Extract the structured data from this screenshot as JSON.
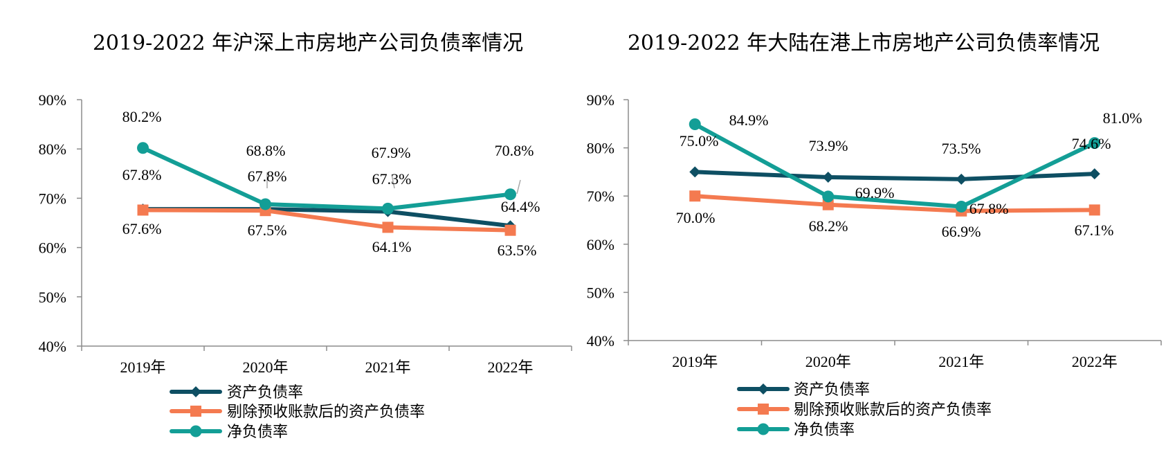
{
  "chart_data": [
    {
      "type": "line",
      "title": "2019-2022 年沪深上市房地产公司负债率情况",
      "categories": [
        "2019年",
        "2020年",
        "2021年",
        "2022年"
      ],
      "ylim": [
        40,
        90
      ],
      "yticks": [
        "40%",
        "50%",
        "60%",
        "70%",
        "80%",
        "90%"
      ],
      "legend_position": "bottom",
      "grid": false,
      "series": [
        {
          "name": "资产负债率",
          "color": "#0e4f63",
          "marker": "diamond",
          "values": [
            67.8,
            67.8,
            67.3,
            64.4
          ],
          "labels": [
            "67.8%",
            "67.8%",
            "67.3%",
            "64.4%"
          ]
        },
        {
          "name": "剔除预收账款后的资产负债率",
          "color": "#f47a50",
          "marker": "square",
          "values": [
            67.6,
            67.5,
            64.1,
            63.5
          ],
          "labels": [
            "67.6%",
            "67.5%",
            "64.1%",
            "63.5%"
          ]
        },
        {
          "name": "净负债率",
          "color": "#139e96",
          "marker": "circle",
          "values": [
            80.2,
            68.8,
            67.9,
            70.8
          ],
          "labels": [
            "80.2%",
            "68.8%",
            "67.9%",
            "70.8%"
          ]
        }
      ]
    },
    {
      "type": "line",
      "title": "2019-2022 年大陆在港上市房地产公司负债率情况",
      "categories": [
        "2019年",
        "2020年",
        "2021年",
        "2022年"
      ],
      "ylim": [
        40,
        90
      ],
      "yticks": [
        "40%",
        "50%",
        "60%",
        "70%",
        "80%",
        "90%"
      ],
      "legend_position": "bottom",
      "grid": false,
      "series": [
        {
          "name": "资产负债率",
          "color": "#0e4f63",
          "marker": "diamond",
          "values": [
            75.0,
            73.9,
            73.5,
            74.6
          ],
          "labels": [
            "75.0%",
            "73.9%",
            "73.5%",
            "74.6%"
          ]
        },
        {
          "name": "剔除预收账款后的资产负债率",
          "color": "#f47a50",
          "marker": "square",
          "values": [
            70.0,
            68.2,
            66.9,
            67.1
          ],
          "labels": [
            "70.0%",
            "68.2%",
            "66.9%",
            "67.1%"
          ]
        },
        {
          "name": "净负债率",
          "color": "#139e96",
          "marker": "circle",
          "values": [
            84.9,
            69.9,
            67.8,
            81.0
          ],
          "labels": [
            "84.9%",
            "69.9%",
            "67.8%",
            "81.0%"
          ]
        }
      ]
    }
  ]
}
